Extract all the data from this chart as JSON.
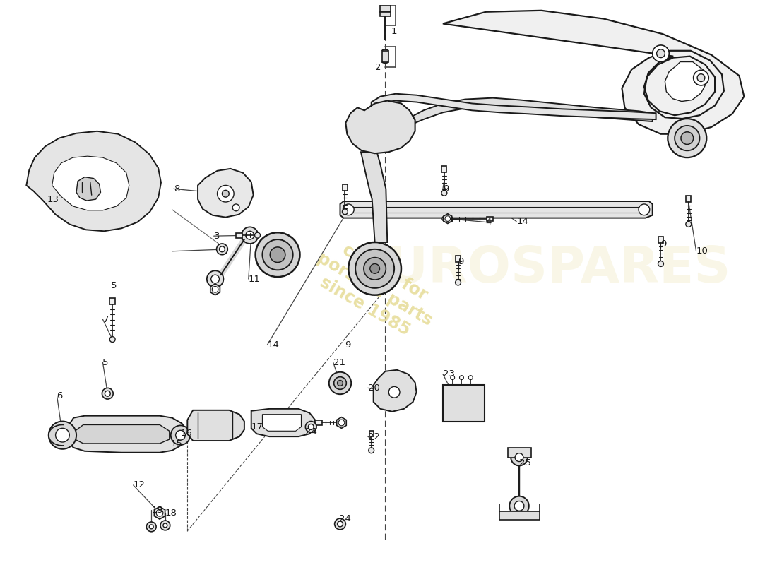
{
  "background_color": "#ffffff",
  "line_color": "#1a1a1a",
  "watermark_color": "#e8dfa0",
  "fig_width": 11.0,
  "fig_height": 8.0,
  "dpi": 100,
  "labels": [
    [
      563,
      762,
      "1"
    ],
    [
      540,
      710,
      "2"
    ],
    [
      308,
      467,
      "3"
    ],
    [
      700,
      487,
      "4"
    ],
    [
      160,
      395,
      "5"
    ],
    [
      148,
      285,
      "5"
    ],
    [
      82,
      237,
      "6"
    ],
    [
      148,
      347,
      "7"
    ],
    [
      250,
      535,
      "8"
    ],
    [
      638,
      535,
      "9"
    ],
    [
      660,
      430,
      "9"
    ],
    [
      497,
      310,
      "9"
    ],
    [
      952,
      455,
      "9"
    ],
    [
      1003,
      445,
      "10"
    ],
    [
      358,
      405,
      "11"
    ],
    [
      192,
      108,
      "12"
    ],
    [
      68,
      520,
      "13"
    ],
    [
      744,
      488,
      "14"
    ],
    [
      385,
      310,
      "14"
    ],
    [
      246,
      167,
      "15"
    ],
    [
      260,
      183,
      "16"
    ],
    [
      362,
      192,
      "17"
    ],
    [
      238,
      68,
      "18"
    ],
    [
      218,
      72,
      "19"
    ],
    [
      530,
      248,
      "20"
    ],
    [
      480,
      285,
      "21"
    ],
    [
      530,
      178,
      "22"
    ],
    [
      638,
      268,
      "23"
    ],
    [
      440,
      185,
      "24"
    ],
    [
      488,
      60,
      "24"
    ],
    [
      748,
      140,
      "25"
    ]
  ]
}
